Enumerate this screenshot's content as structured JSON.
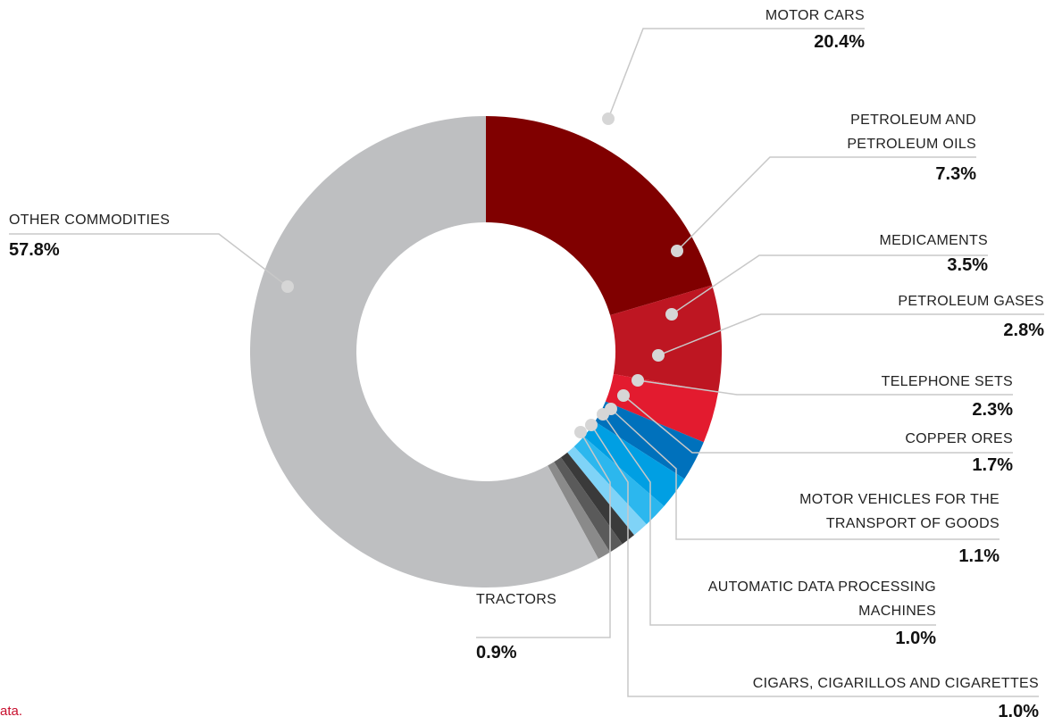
{
  "chart_data": {
    "type": "donut",
    "categories": [
      "MOTOR CARS",
      "PETROLEUM AND PETROLEUM OILS",
      "MEDICAMENTS",
      "PETROLEUM GASES",
      "TELEPHONE SETS",
      "COPPER ORES",
      "MOTOR VEHICLES FOR THE TRANSPORT OF GOODS",
      "AUTOMATIC DATA PROCESSING MACHINES",
      "CIGARS, CIGARILLOS AND CIGARETTES",
      "TRACTORS",
      "OTHER COMMODITIES"
    ],
    "values": [
      20.4,
      7.3,
      3.5,
      2.8,
      2.3,
      1.7,
      1.1,
      1.0,
      1.0,
      0.9,
      57.8
    ],
    "value_labels": [
      "20.4%",
      "7.3%",
      "3.5%",
      "2.8%",
      "2.3%",
      "1.7%",
      "1.1%",
      "1.0%",
      "1.0%",
      "0.9%",
      "57.8%"
    ],
    "colors": [
      "#800000",
      "#be1622",
      "#e31b2f",
      "#0071bc",
      "#009fe3",
      "#2cb7ee",
      "#7fd3f7",
      "#3a3a3a",
      "#5a5a5a",
      "#8a8a8a",
      "#bebfc1"
    ],
    "note": "ata."
  }
}
